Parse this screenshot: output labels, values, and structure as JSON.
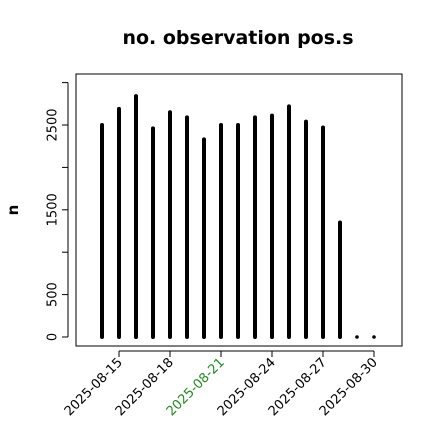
{
  "chart_data": {
    "type": "bar",
    "title": "no. observation pos.s",
    "ylabel": "n",
    "xlabel": "",
    "x_axis_type": "date",
    "x": [
      "2025-08-14",
      "2025-08-15",
      "2025-08-16",
      "2025-08-17",
      "2025-08-18",
      "2025-08-19",
      "2025-08-20",
      "2025-08-21",
      "2025-08-22",
      "2025-08-23",
      "2025-08-24",
      "2025-08-25",
      "2025-08-26",
      "2025-08-27",
      "2025-08-28",
      "2025-08-29",
      "2025-08-30"
    ],
    "values": [
      2500,
      2690,
      2840,
      2460,
      2650,
      2590,
      2330,
      2500,
      2500,
      2590,
      2610,
      2720,
      2540,
      2470,
      1350,
      0,
      0
    ],
    "xlim": [
      "2025-08-13",
      "2025-08-31"
    ],
    "ylim": [
      -50,
      3100
    ],
    "yticks": [
      0,
      500,
      1500,
      2500
    ],
    "xticks": [
      "2025-08-15",
      "2025-08-18",
      "2025-08-21",
      "2025-08-24",
      "2025-08-27",
      "2025-08-30"
    ],
    "highlight_tick": "2025-08-21",
    "highlight_color": "#228B22",
    "bar_color": "#000000",
    "grid": false,
    "legend": "none"
  }
}
